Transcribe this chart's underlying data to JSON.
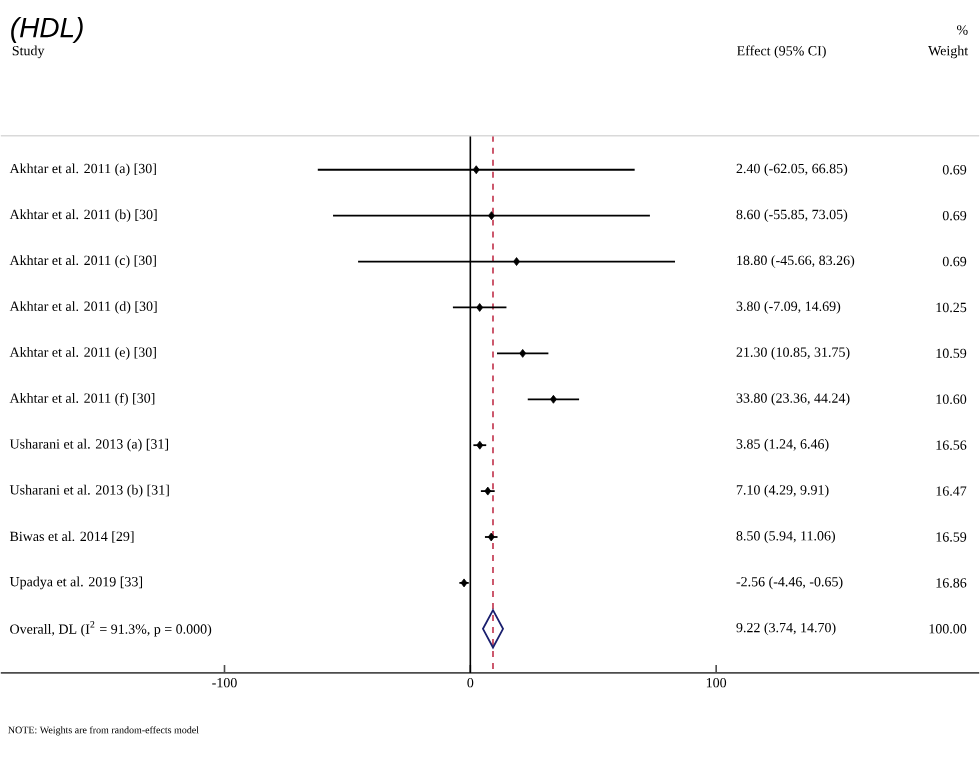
{
  "chart_data": {
    "type": "scatter",
    "orientation": "horizontal",
    "title": "(HDL)",
    "categories": [
      "Akhtar et al. 2011 (a) [30]",
      "Akhtar et al. 2011 (b) [30]",
      "Akhtar et al. 2011 (c) [30]",
      "Akhtar et al. 2011 (d) [30]",
      "Akhtar et al. 2011 (e) [30]",
      "Akhtar et al. 2011 (f) [30]",
      "Usharani et al. 2013 (a) [31]",
      "Usharani et al. 2013 (b) [31]",
      "Biwas et al. 2014 [29]",
      "Upadya et al. 2019 [33]",
      "Overall, DL (I$^{2}$ = 91.3%, p = 0.000)"
    ],
    "series": [
      {
        "color": "#000000",
        "marker": "diamond",
        "values": [
          2.4,
          8.6,
          18.8,
          3.8,
          21.3,
          33.8,
          3.85,
          7.1,
          8.5,
          -2.56,
          null
        ],
        "errors": [
          [
            -62.05,
            66.85
          ],
          [
            -55.85,
            73.05
          ],
          [
            -45.66,
            83.26
          ],
          [
            -7.09,
            14.69
          ],
          [
            10.85,
            31.75
          ],
          [
            23.36,
            44.24
          ],
          [
            1.24,
            6.46
          ],
          [
            4.29,
            9.91
          ],
          [
            5.94,
            11.06
          ],
          [
            -4.46,
            -0.65
          ],
          null
        ]
      },
      {
        "color": "#1a1f6e",
        "marker": "diamond",
        "values": [
          null,
          null,
          null,
          null,
          null,
          null,
          null,
          null,
          null,
          null,
          9.22
        ]
      }
    ],
    "xlim": [
      -191,
      207
    ],
    "xticks": [
      -100,
      0,
      100
    ],
    "tick_labels": "x",
    "grid": false,
    "ref_lines": [
      {
        "axis": "x",
        "value": 0,
        "color": "#000000",
        "line_style": "solid"
      },
      {
        "axis": "x",
        "value": 9.22,
        "color": "#c0304a",
        "line_style": "dashed"
      }
    ],
    "annotations": [
      "%",
      "Study",
      "Effect (95% CI)",
      "Weight",
      "NOTE: Weights are from random-effects model",
      "0.69",
      "0.69",
      "0.69",
      "10.25",
      "10.59",
      "10.60",
      "16.56",
      "16.47",
      "16.59",
      "16.86",
      "100.00",
      "2.40 (-62.05, 66.85)",
      "8.60 (-55.85, 73.05)",
      "18.80 (-45.66, 83.26)",
      "3.80 (-7.09, 14.69)",
      "21.30 (10.85, 31.75)",
      "33.80 (23.36, 44.24)",
      "3.85 (1.24, 6.46)",
      "7.10 (4.29, 9.91)",
      "8.50 (5.94, 11.06)",
      "-2.56 (-4.46, -0.65)",
      "9.22 (3.74, 14.70)"
    ]
  }
}
